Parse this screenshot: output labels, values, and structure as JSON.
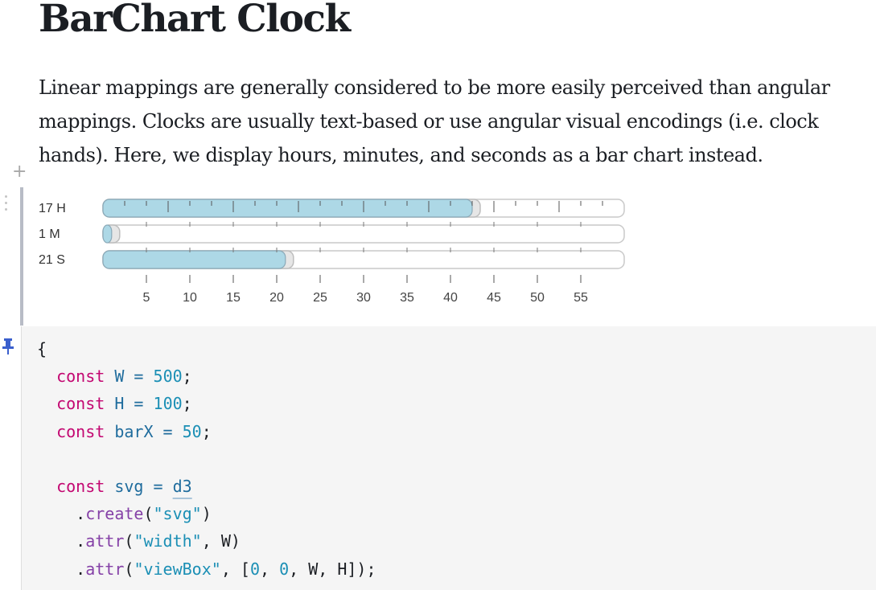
{
  "notebook": {
    "title": "BarChart Clock",
    "description": "Linear mappings are generally considered to be more easily perceived than angular mappings. Clocks are usually text-based or use angular visual encodings (i.e. clock hands). Here, we display hours, minutes, and seconds as a bar chart instead.",
    "add_cell_glyph": "+"
  },
  "chart_data": {
    "type": "bar",
    "orientation": "horizontal",
    "categories": [
      "17 H",
      "1 M",
      "21 S"
    ],
    "values": [
      17,
      1,
      21
    ],
    "xlim": [
      0,
      60
    ],
    "xticks": [
      5,
      10,
      15,
      20,
      25,
      30,
      35,
      40,
      45,
      50,
      55
    ],
    "tick_labels": [
      "5",
      "10",
      "15",
      "20",
      "25",
      "30",
      "35",
      "40",
      "45",
      "50",
      "55"
    ],
    "hour_bar_scale": "hours mapped to 0-24 across full track",
    "colors": {
      "fill": "#add8e6",
      "track": "#ffffff",
      "stroke": "#c9c9c9"
    }
  },
  "code": {
    "lines": [
      [
        {
          "t": "{",
          "c": ""
        }
      ],
      [
        {
          "t": "  ",
          "c": ""
        },
        {
          "t": "const",
          "c": "kw"
        },
        {
          "t": " W = ",
          "c": "ident"
        },
        {
          "t": "500",
          "c": "num"
        },
        {
          "t": ";",
          "c": ""
        }
      ],
      [
        {
          "t": "  ",
          "c": ""
        },
        {
          "t": "const",
          "c": "kw"
        },
        {
          "t": " H = ",
          "c": "ident"
        },
        {
          "t": "100",
          "c": "num"
        },
        {
          "t": ";",
          "c": ""
        }
      ],
      [
        {
          "t": "  ",
          "c": ""
        },
        {
          "t": "const",
          "c": "kw"
        },
        {
          "t": " barX = ",
          "c": "ident"
        },
        {
          "t": "50",
          "c": "num"
        },
        {
          "t": ";",
          "c": ""
        }
      ],
      [
        {
          "t": "",
          "c": ""
        }
      ],
      [
        {
          "t": "  ",
          "c": ""
        },
        {
          "t": "const",
          "c": "kw"
        },
        {
          "t": " svg = ",
          "c": "ident"
        },
        {
          "t": "d3",
          "c": "ident d3ref"
        }
      ],
      [
        {
          "t": "    .",
          "c": ""
        },
        {
          "t": "create",
          "c": "fn"
        },
        {
          "t": "(",
          "c": ""
        },
        {
          "t": "\"svg\"",
          "c": "str"
        },
        {
          "t": ")",
          "c": ""
        }
      ],
      [
        {
          "t": "    .",
          "c": ""
        },
        {
          "t": "attr",
          "c": "fn"
        },
        {
          "t": "(",
          "c": ""
        },
        {
          "t": "\"width\"",
          "c": "str"
        },
        {
          "t": ", W)",
          "c": ""
        }
      ],
      [
        {
          "t": "    .",
          "c": ""
        },
        {
          "t": "attr",
          "c": "fn"
        },
        {
          "t": "(",
          "c": ""
        },
        {
          "t": "\"viewBox\"",
          "c": "str"
        },
        {
          "t": ", [",
          "c": ""
        },
        {
          "t": "0",
          "c": "num"
        },
        {
          "t": ", ",
          "c": ""
        },
        {
          "t": "0",
          "c": "num"
        },
        {
          "t": ", W, H]);",
          "c": ""
        }
      ]
    ]
  }
}
